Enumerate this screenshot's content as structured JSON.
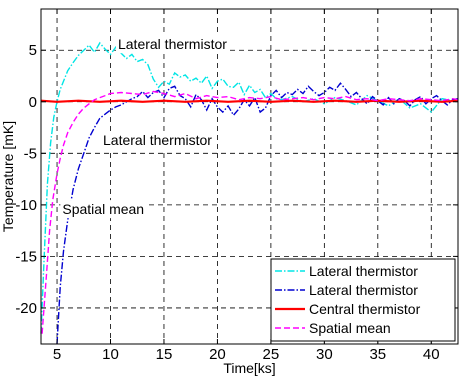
{
  "chart_data": {
    "type": "line",
    "xlabel": "Time[ks]",
    "ylabel": "Temperature [mK]",
    "xlim": [
      3.5,
      42.5
    ],
    "ylim": [
      -23.5,
      9
    ],
    "xticks": [
      5,
      10,
      15,
      20,
      25,
      30,
      35,
      40
    ],
    "yticks": [
      -20,
      -15,
      -10,
      -5,
      0,
      5
    ],
    "grid": true,
    "legend_position": "bottom-right",
    "annotations": [
      {
        "text": "Lateral thermistor",
        "x": 10.7,
        "y": 5.1
      },
      {
        "text": "Lateral thermistor",
        "x": 9.3,
        "y": -4.2
      },
      {
        "text": "Spatial mean",
        "x": 5.5,
        "y": -10.9
      }
    ],
    "series": [
      {
        "name": "Lateral thermistor",
        "color": "#00e5e5",
        "style": "dashdot",
        "x": [
          3.5,
          3.8,
          4.1,
          4.4,
          4.7,
          5.0,
          5.3,
          5.6,
          6.0,
          6.5,
          7.0,
          7.5,
          8.0,
          8.5,
          9.0,
          9.5,
          10.0,
          10.5,
          11.0,
          11.5,
          12.0,
          12.5,
          13.0,
          13.5,
          14.0,
          14.5,
          15.0,
          15.5,
          16.0,
          16.5,
          17.0,
          17.5,
          18.0,
          18.5,
          19.0,
          19.5,
          20.0,
          20.5,
          21.0,
          21.5,
          22.0,
          22.5,
          23.0,
          23.5,
          24.0,
          24.5,
          25.0,
          25.5,
          26.0,
          27.0,
          28.0,
          29.0,
          30.0,
          31.0,
          32.0,
          33.0,
          34.0,
          35.0,
          36.0,
          37.0,
          38.0,
          39.0,
          40.0,
          41.0,
          42.0,
          42.5
        ],
        "y": [
          -22.5,
          -15.0,
          -8.0,
          -4.0,
          -1.5,
          0.0,
          1.2,
          2.0,
          3.0,
          3.8,
          4.5,
          5.0,
          5.5,
          4.8,
          5.7,
          5.1,
          4.6,
          5.3,
          4.7,
          4.2,
          4.6,
          3.9,
          4.1,
          3.6,
          2.2,
          1.4,
          2.0,
          1.7,
          2.8,
          2.4,
          2.6,
          2.0,
          2.3,
          1.8,
          2.5,
          1.3,
          2.0,
          2.2,
          1.5,
          1.4,
          1.9,
          0.7,
          1.6,
          0.9,
          1.2,
          0.4,
          0.8,
          0.3,
          0.2,
          0.5,
          0.0,
          0.3,
          -0.2,
          0.4,
          0.1,
          -0.3,
          0.6,
          0.1,
          -0.4,
          0.3,
          -0.6,
          -0.2,
          -1.0,
          0.3,
          0.1,
          0.2
        ]
      },
      {
        "name": "Lateral thermistor",
        "color": "#0000d0",
        "style": "dashdot",
        "x": [
          5.0,
          5.3,
          5.6,
          6.0,
          6.5,
          7.0,
          7.5,
          8.0,
          8.5,
          9.0,
          9.5,
          10.0,
          10.5,
          11.0,
          11.5,
          12.0,
          12.5,
          13.0,
          13.5,
          14.0,
          14.5,
          15.0,
          15.5,
          16.0,
          16.5,
          17.0,
          17.5,
          18.0,
          18.5,
          19.0,
          19.5,
          20.0,
          20.5,
          21.0,
          21.5,
          22.0,
          22.5,
          23.0,
          23.5,
          24.0,
          24.5,
          25.0,
          25.5,
          26.0,
          26.5,
          27.0,
          27.5,
          28.0,
          28.5,
          29.0,
          29.5,
          30.0,
          30.5,
          31.0,
          31.5,
          32.0,
          32.5,
          33.0,
          33.5,
          34.0,
          34.5,
          35.0,
          35.5,
          36.0,
          36.5,
          37.0,
          37.5,
          38.0,
          38.5,
          39.0,
          39.5,
          40.0,
          40.5,
          41.0,
          41.5,
          42.0,
          42.5
        ],
        "y": [
          -23.5,
          -18.0,
          -14.5,
          -11.5,
          -8.5,
          -6.5,
          -5.0,
          -3.5,
          -2.5,
          -1.6,
          -1.2,
          -0.8,
          -0.5,
          -0.3,
          0.0,
          0.3,
          0.5,
          1.0,
          0.4,
          0.9,
          1.1,
          0.4,
          1.3,
          1.5,
          0.6,
          0.3,
          -0.5,
          0.7,
          0.2,
          -0.8,
          0.3,
          -0.5,
          -1.0,
          -0.4,
          -1.3,
          -0.7,
          0.2,
          -0.4,
          0.4,
          -1.0,
          -0.6,
          0.6,
          1.1,
          0.4,
          0.9,
          0.7,
          1.2,
          0.8,
          1.5,
          1.0,
          0.6,
          0.9,
          1.4,
          1.1,
          1.8,
          1.2,
          0.5,
          0.9,
          0.3,
          -0.2,
          0.5,
          0.1,
          -0.3,
          0.4,
          -0.2,
          0.3,
          0.1,
          -0.4,
          0.2,
          0.5,
          -0.2,
          0.3,
          0.6,
          0.1,
          -0.3,
          0.2,
          0.3
        ]
      },
      {
        "name": "Central thermistor",
        "color": "#ff0000",
        "style": "solid",
        "x": [
          3.5,
          5.0,
          7.0,
          9.0,
          11.0,
          13.0,
          15.0,
          17.0,
          19.0,
          21.0,
          23.0,
          25.0,
          27.0,
          29.0,
          31.0,
          33.0,
          35.0,
          37.0,
          39.0,
          41.0,
          42.5
        ],
        "y": [
          0.1,
          0.0,
          0.1,
          0.0,
          0.1,
          0.0,
          0.1,
          0.0,
          0.1,
          0.0,
          0.1,
          0.0,
          0.1,
          0.0,
          0.1,
          0.0,
          0.1,
          0.0,
          0.1,
          0.0,
          0.1
        ]
      },
      {
        "name": "Spatial mean",
        "color": "#ff00ff",
        "style": "dashed",
        "x": [
          3.6,
          4.0,
          4.3,
          4.6,
          5.0,
          5.3,
          5.6,
          6.0,
          6.5,
          7.0,
          7.5,
          8.0,
          8.5,
          9.0,
          9.5,
          10.0,
          11.0,
          12.0,
          13.0,
          14.0,
          15.0,
          16.0,
          17.0,
          18.0,
          19.0,
          20.0,
          21.0,
          22.0,
          23.0,
          24.0,
          25.0,
          26.0,
          27.0,
          28.0,
          29.0,
          30.0,
          31.0,
          32.0,
          33.0,
          34.0,
          35.0,
          36.0,
          37.0,
          38.0,
          39.0,
          40.0,
          41.0,
          42.0,
          42.5
        ],
        "y": [
          -22.5,
          -17.0,
          -12.5,
          -9.5,
          -7.0,
          -5.5,
          -4.2,
          -3.0,
          -2.0,
          -1.2,
          -0.6,
          -0.2,
          0.2,
          0.4,
          0.6,
          0.8,
          0.9,
          0.8,
          0.7,
          1.0,
          0.8,
          0.5,
          0.8,
          0.3,
          0.6,
          0.4,
          0.5,
          0.2,
          0.4,
          0.3,
          0.5,
          0.2,
          0.3,
          0.4,
          0.2,
          0.4,
          0.3,
          0.5,
          0.2,
          0.3,
          0.1,
          0.3,
          0.2,
          0.1,
          0.3,
          0.2,
          0.1,
          0.3,
          0.2
        ]
      }
    ]
  }
}
